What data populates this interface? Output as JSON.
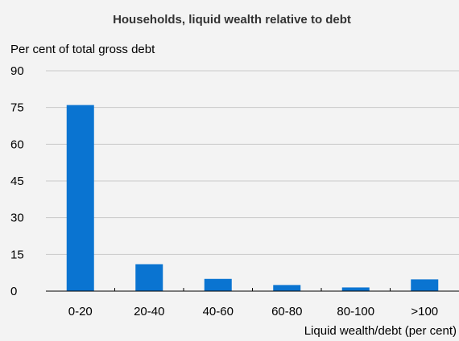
{
  "chart_data": {
    "type": "bar",
    "title": "Households, liquid wealth relative to debt",
    "ylabel": "Per cent of total gross debt",
    "xlabel": "Liquid wealth/debt (per cent)",
    "categories": [
      "0-20",
      "20-40",
      "40-60",
      "60-80",
      "80-100",
      ">100"
    ],
    "values": [
      76,
      11,
      5,
      2.5,
      1.5,
      4.8
    ],
    "ylim": [
      0,
      90
    ],
    "yticks": [
      0,
      15,
      30,
      45,
      60,
      75,
      90
    ],
    "grid": true,
    "bar_color": "#0a74d1",
    "grid_color": "#c8c8c8"
  }
}
